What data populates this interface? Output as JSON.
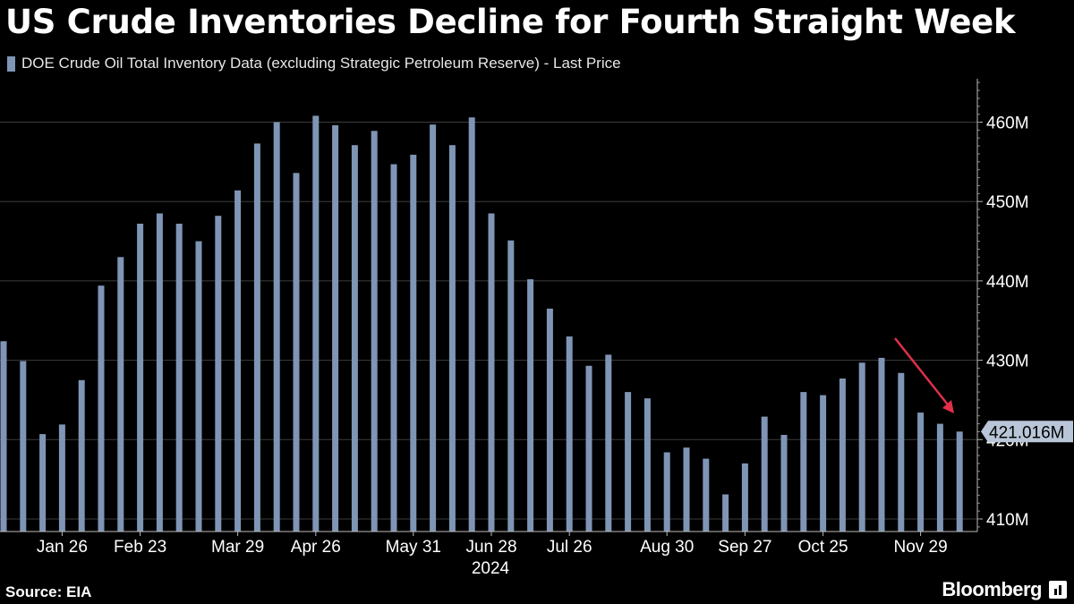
{
  "title": "US Crude Inventories Decline for Fourth Straight Week",
  "source": "Source: EIA",
  "brand": "Bloomberg",
  "colors": {
    "bar": "#7f95b5",
    "arrow": "#e0304a",
    "grid": "#3c3c3c",
    "background": "#000000"
  },
  "chart_data": {
    "type": "bar",
    "legend": "DOE Crude Oil Total Inventory Data (excluding Strategic Petroleum Reserve) - Last Price",
    "series": [
      {
        "name": "DOE Crude Oil Total Inventory Data (excluding Strategic Petroleum Reserve) - Last Price",
        "values": [
          432.4,
          429.9,
          420.7,
          421.9,
          427.5,
          439.4,
          443.0,
          447.2,
          448.5,
          447.2,
          445.0,
          448.2,
          451.4,
          457.3,
          460.0,
          453.6,
          460.8,
          459.6,
          457.1,
          458.9,
          454.7,
          455.9,
          459.7,
          457.1,
          460.6,
          448.5,
          445.1,
          440.2,
          436.5,
          433.0,
          429.3,
          430.7,
          426.0,
          425.2,
          418.4,
          419.0,
          417.6,
          413.1,
          417.0,
          422.9,
          420.6,
          426.0,
          425.6,
          427.7,
          429.7,
          430.3,
          428.4,
          423.4,
          422.0,
          421.016
        ]
      }
    ],
    "x_axis": {
      "ticks": [
        "Jan 26",
        "Feb 23",
        "Mar 29",
        "Apr 26",
        "May 31",
        "Jun 28",
        "Jul 26",
        "Aug 30",
        "Sep 27",
        "Oct 25",
        "Nov 29"
      ],
      "year": "2024"
    },
    "y_axis": {
      "position": "right",
      "ticks": [
        "410M",
        "420M",
        "430M",
        "440M",
        "450M",
        "460M"
      ],
      "range": [
        408,
        466
      ]
    },
    "last_value_label": "421.016M",
    "annotation": "red arrow pointing down over the last four weeks",
    "grid": "horizontal"
  }
}
